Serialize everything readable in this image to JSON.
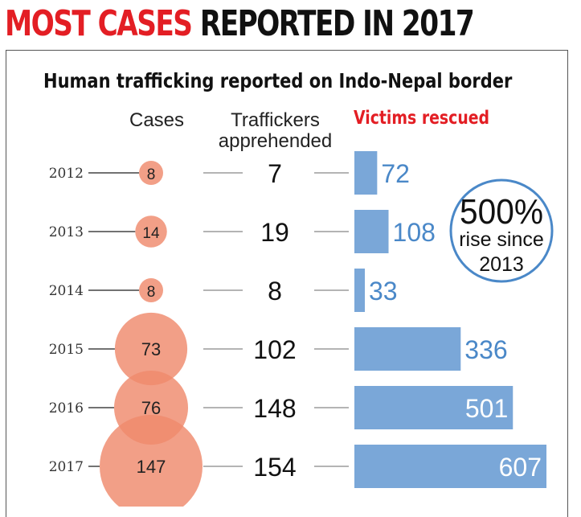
{
  "headline": {
    "red_part": "MOST CASES",
    "black_part": "REPORTED IN 2017"
  },
  "subtitle": "Human trafficking reported on Indo-Nepal border",
  "columns": {
    "cases": "Cases",
    "traffickers_line1": "Traffickers",
    "traffickers_line2": "apprehended",
    "victims": "Victims rescued"
  },
  "badge": {
    "big": "500%",
    "line1": "rise since",
    "line2": "2013"
  },
  "colors": {
    "red": "#e31e24",
    "circle_fill": "#ef8a6c",
    "bar_fill": "#7aa7d8",
    "value_blue": "#4a88c8",
    "badge_ring": "#4a88c8"
  },
  "chart_data": {
    "type": "table",
    "title": "Human trafficking reported on Indo-Nepal border",
    "categories": [
      "2012",
      "2013",
      "2014",
      "2015",
      "2016",
      "2017"
    ],
    "series": [
      {
        "name": "Cases",
        "values": [
          8,
          14,
          8,
          73,
          76,
          147
        ]
      },
      {
        "name": "Traffickers apprehended",
        "values": [
          7,
          19,
          8,
          102,
          148,
          154
        ]
      },
      {
        "name": "Victims rescued",
        "values": [
          72,
          108,
          33,
          336,
          501,
          607
        ]
      }
    ]
  }
}
